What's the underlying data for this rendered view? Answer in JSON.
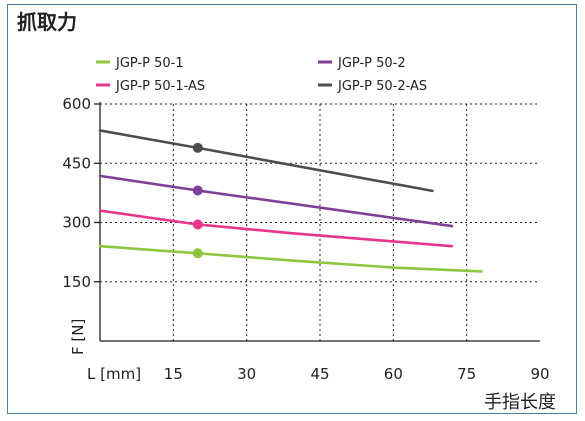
{
  "chart_data": {
    "type": "line",
    "title": "抓取力",
    "ylabel": "F [N]",
    "xlabel": "L [mm]",
    "x_unit_label": "手指长度",
    "xlim": [
      0,
      90
    ],
    "ylim": [
      0,
      600
    ],
    "x_ticks": [
      15,
      30,
      45,
      60,
      75,
      90
    ],
    "y_ticks": [
      150,
      300,
      450,
      600
    ],
    "grid": true,
    "legend_position": "top",
    "series": [
      {
        "name": "JGP-P 50-1",
        "color": "#8cc63f",
        "x": [
          0,
          20,
          40,
          60,
          78
        ],
        "y": [
          240,
          222,
          203,
          186,
          176
        ],
        "marker": {
          "x": 20,
          "y": 222
        }
      },
      {
        "name": "JGP-P 50-2",
        "color": "#7e3f98",
        "x": [
          0,
          20,
          72
        ],
        "y": [
          418,
          381,
          291
        ],
        "marker": {
          "x": 20,
          "y": 381
        }
      },
      {
        "name": "JGP-P 50-1-AS",
        "color": "#e6358b",
        "x": [
          0,
          20,
          40,
          72
        ],
        "y": [
          330,
          295,
          272,
          240
        ],
        "marker": {
          "x": 20,
          "y": 295
        }
      },
      {
        "name": "JGP-P 50-2-AS",
        "color": "#4d4d4d",
        "x": [
          0,
          20,
          68
        ],
        "y": [
          533,
          489,
          380
        ],
        "marker": {
          "x": 20,
          "y": 489
        }
      }
    ]
  }
}
